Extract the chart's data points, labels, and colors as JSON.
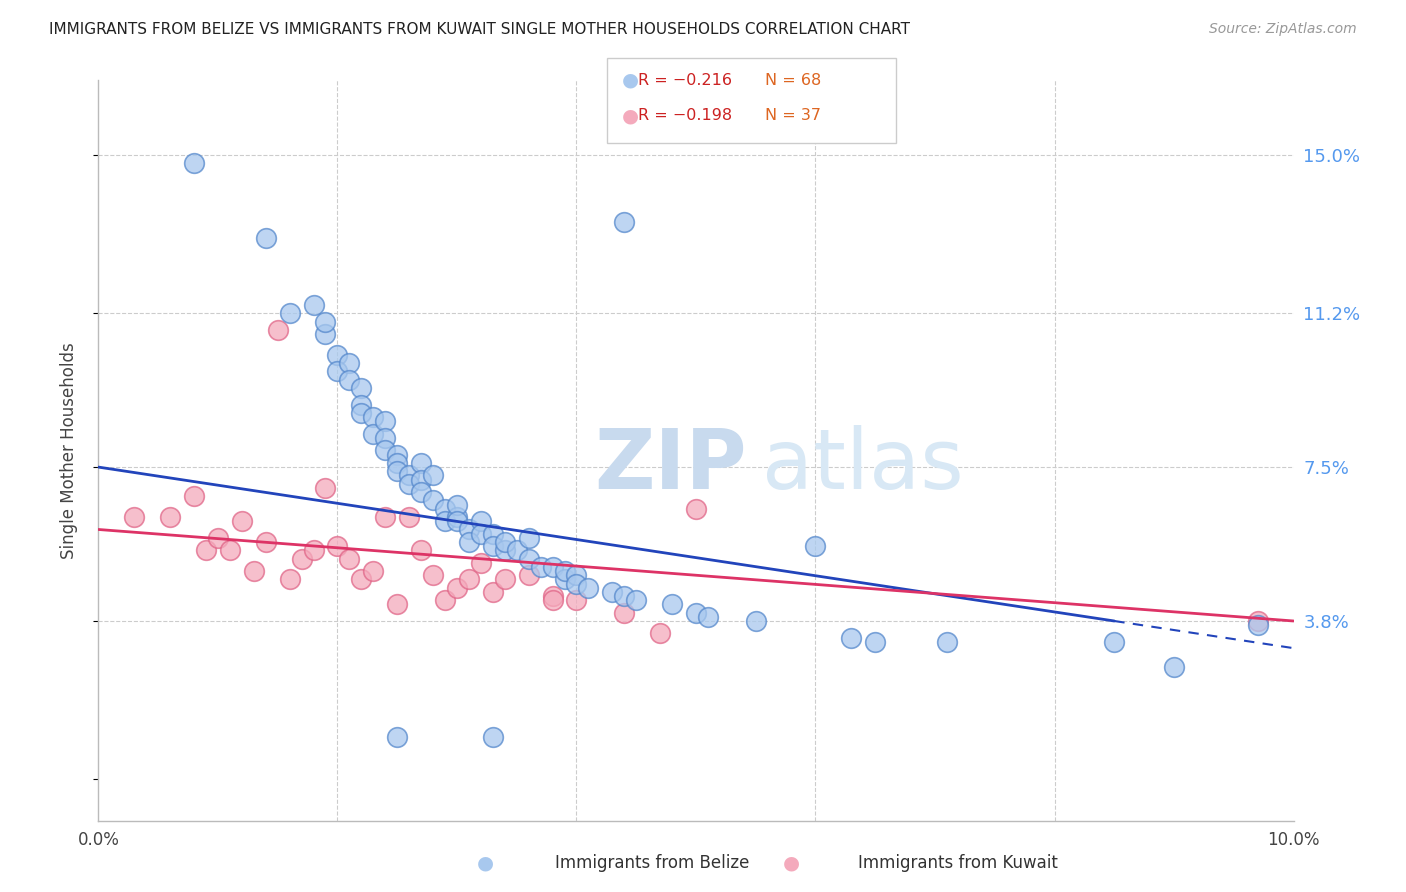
{
  "title": "IMMIGRANTS FROM BELIZE VS IMMIGRANTS FROM KUWAIT SINGLE MOTHER HOUSEHOLDS CORRELATION CHART",
  "source": "Source: ZipAtlas.com",
  "ylabel": "Single Mother Households",
  "yticks": [
    0.0,
    0.038,
    0.075,
    0.112,
    0.15
  ],
  "ytick_labels": [
    "",
    "3.8%",
    "7.5%",
    "11.2%",
    "15.0%"
  ],
  "xlim": [
    0.0,
    0.1
  ],
  "ylim": [
    -0.01,
    0.168
  ],
  "legend_r1": "R = −0.216",
  "legend_n1": "N = 68",
  "legend_r2": "R = −0.198",
  "legend_n2": "N = 37",
  "belize_color": "#A8C8EE",
  "kuwait_color": "#F4AABC",
  "belize_edge": "#5588CC",
  "kuwait_edge": "#E06688",
  "trendline_belize": "#2244BB",
  "trendline_kuwait": "#DD3366",
  "watermark_zip": "ZIP",
  "watermark_atlas": "atlas",
  "belize_x": [
    0.008,
    0.014,
    0.016,
    0.018,
    0.019,
    0.019,
    0.02,
    0.02,
    0.021,
    0.021,
    0.022,
    0.022,
    0.022,
    0.023,
    0.023,
    0.024,
    0.024,
    0.024,
    0.025,
    0.025,
    0.025,
    0.026,
    0.026,
    0.027,
    0.027,
    0.027,
    0.028,
    0.028,
    0.029,
    0.029,
    0.03,
    0.03,
    0.03,
    0.031,
    0.031,
    0.032,
    0.032,
    0.033,
    0.033,
    0.034,
    0.034,
    0.035,
    0.036,
    0.036,
    0.037,
    0.038,
    0.039,
    0.039,
    0.04,
    0.04,
    0.041,
    0.043,
    0.044,
    0.045,
    0.048,
    0.05,
    0.051,
    0.055,
    0.06,
    0.063,
    0.065,
    0.071,
    0.085,
    0.09,
    0.044,
    0.025,
    0.033,
    0.097
  ],
  "belize_y": [
    0.148,
    0.13,
    0.112,
    0.114,
    0.107,
    0.11,
    0.102,
    0.098,
    0.1,
    0.096,
    0.094,
    0.09,
    0.088,
    0.087,
    0.083,
    0.086,
    0.082,
    0.079,
    0.078,
    0.076,
    0.074,
    0.073,
    0.071,
    0.076,
    0.072,
    0.069,
    0.067,
    0.073,
    0.065,
    0.062,
    0.063,
    0.066,
    0.062,
    0.06,
    0.057,
    0.062,
    0.059,
    0.059,
    0.056,
    0.055,
    0.057,
    0.055,
    0.058,
    0.053,
    0.051,
    0.051,
    0.048,
    0.05,
    0.049,
    0.047,
    0.046,
    0.045,
    0.044,
    0.043,
    0.042,
    0.04,
    0.039,
    0.038,
    0.056,
    0.034,
    0.033,
    0.033,
    0.033,
    0.027,
    0.134,
    0.01,
    0.01,
    0.037
  ],
  "kuwait_x": [
    0.003,
    0.006,
    0.008,
    0.009,
    0.01,
    0.011,
    0.012,
    0.013,
    0.014,
    0.015,
    0.016,
    0.017,
    0.018,
    0.019,
    0.02,
    0.021,
    0.022,
    0.023,
    0.024,
    0.025,
    0.026,
    0.027,
    0.028,
    0.029,
    0.03,
    0.031,
    0.032,
    0.033,
    0.034,
    0.036,
    0.038,
    0.04,
    0.044,
    0.047,
    0.05,
    0.038,
    0.097
  ],
  "kuwait_y": [
    0.063,
    0.063,
    0.068,
    0.055,
    0.058,
    0.055,
    0.062,
    0.05,
    0.057,
    0.108,
    0.048,
    0.053,
    0.055,
    0.07,
    0.056,
    0.053,
    0.048,
    0.05,
    0.063,
    0.042,
    0.063,
    0.055,
    0.049,
    0.043,
    0.046,
    0.048,
    0.052,
    0.045,
    0.048,
    0.049,
    0.044,
    0.043,
    0.04,
    0.035,
    0.065,
    0.043,
    0.038
  ],
  "belize_trendline_x0": 0.0,
  "belize_trendline_y0": 0.075,
  "belize_trendline_x1": 0.085,
  "belize_trendline_y1": 0.038,
  "kuwait_trendline_x0": 0.0,
  "kuwait_trendline_y0": 0.06,
  "kuwait_trendline_x1": 0.1,
  "kuwait_trendline_y1": 0.038
}
